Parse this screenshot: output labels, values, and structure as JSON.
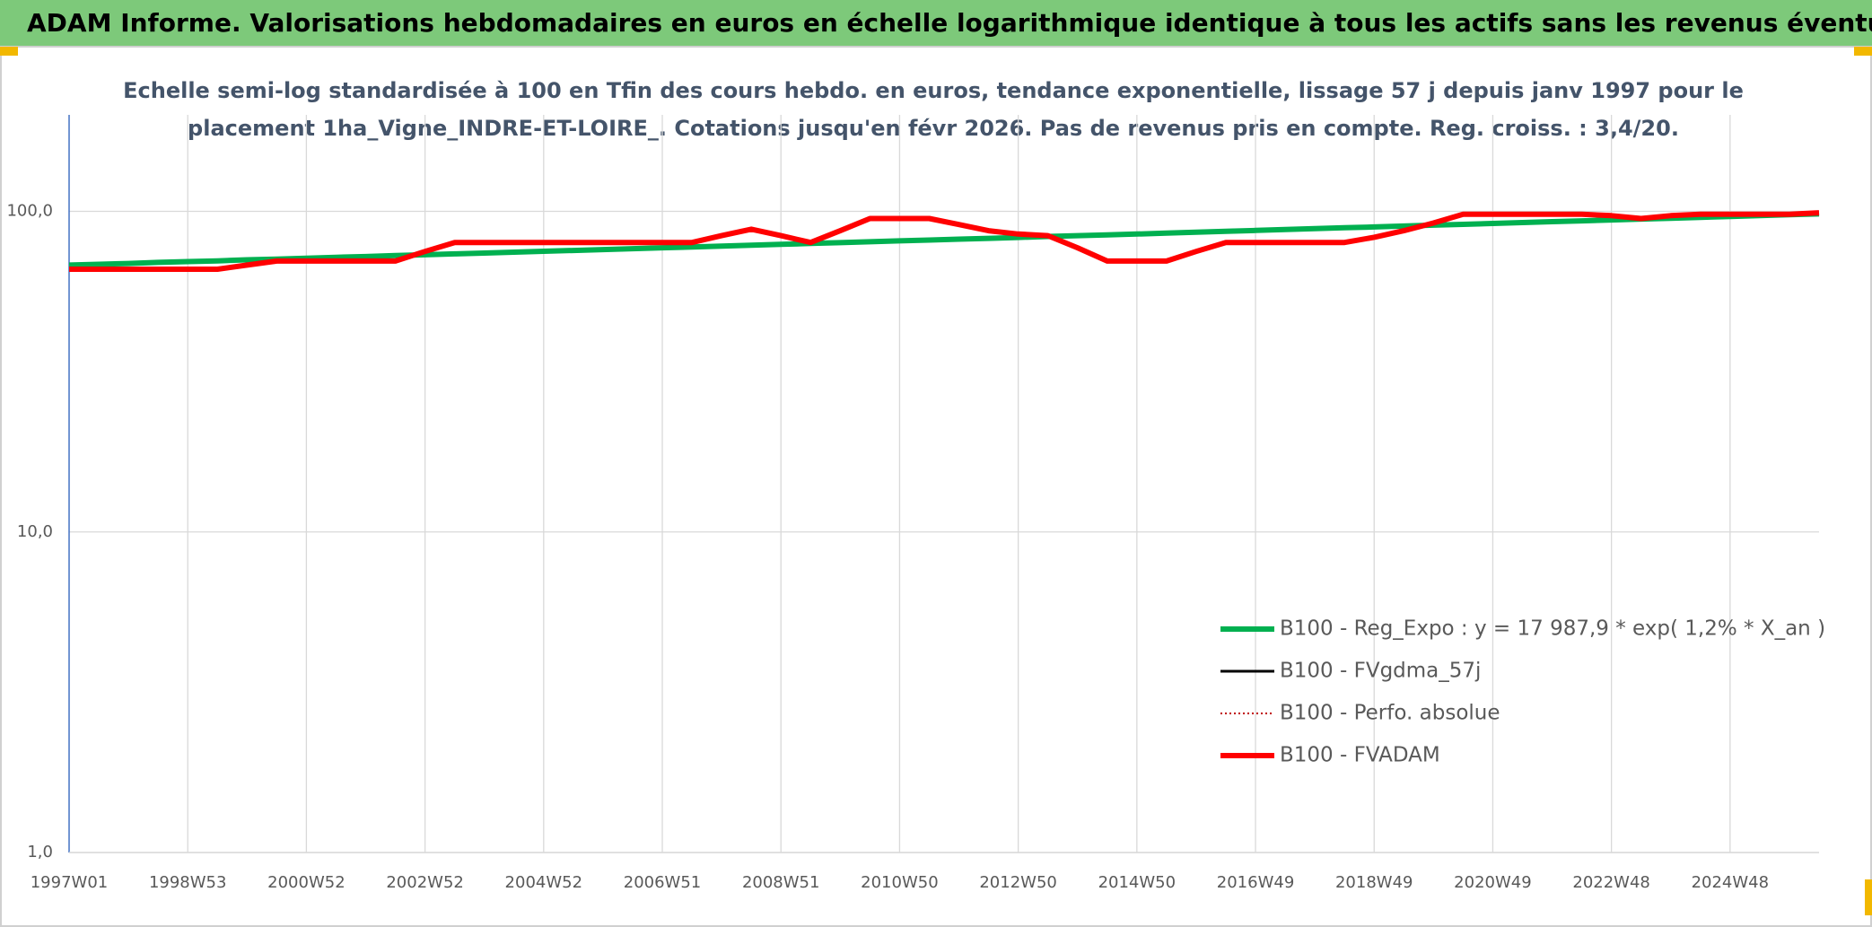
{
  "header": {
    "title": "ADAM Informe. Valorisations hebdomadaires en euros en échelle logarithmique identique à tous les actifs sans les revenus éventuels"
  },
  "chart_data": {
    "type": "line",
    "title_lines": [
      "Echelle semi-log standardisée à 100 en Tfin des cours hebdo. en euros, tendance exponentielle, lissage 57 j depuis janv 1997 pour le",
      "placement 1ha_Vigne_INDRE-ET-LOIRE_. Cotations jusqu'en févr 2026. Pas de revenus pris en compte. Reg. croiss. : 3,4/20."
    ],
    "categories": [
      "1997W01",
      null,
      null,
      null,
      "1998W53",
      null,
      null,
      null,
      "2000W52",
      null,
      null,
      null,
      "2002W52",
      null,
      null,
      null,
      "2004W52",
      null,
      null,
      null,
      "2006W51",
      null,
      null,
      null,
      "2008W51",
      null,
      null,
      null,
      "2010W50",
      null,
      null,
      null,
      "2012W50",
      null,
      null,
      null,
      "2014W50",
      null,
      null,
      null,
      "2016W49",
      null,
      null,
      null,
      "2018W49",
      null,
      null,
      null,
      "2020W49",
      null,
      null,
      null,
      "2022W48",
      null,
      null,
      null,
      "2024W48",
      null,
      null,
      null
    ],
    "log_scale": true,
    "grid": true,
    "legend": "lower right",
    "ylim": [
      1,
      200
    ],
    "yticks": [
      {
        "value": 1,
        "label": "1,0"
      },
      {
        "value": 10,
        "label": "10,0"
      },
      {
        "value": 100,
        "label": "100,0"
      }
    ],
    "series": [
      {
        "name": "B100 - Reg_Expo : y = 17 987,9 * exp( 1,2% *  X_an )",
        "color": "#00b050",
        "line_style": "solid",
        "values": [
          68.0,
          68.4,
          68.8,
          69.3,
          69.7,
          70.1,
          70.6,
          71.0,
          71.4,
          71.9,
          72.3,
          72.8,
          73.2,
          73.7,
          74.1,
          74.6,
          75.1,
          75.5,
          76.0,
          76.5,
          77.0,
          77.4,
          77.9,
          78.4,
          78.9,
          79.4,
          79.9,
          80.4,
          80.9,
          81.4,
          81.9,
          82.4,
          82.9,
          83.5,
          84.0,
          84.5,
          85.0,
          85.6,
          86.1,
          86.7,
          87.2,
          87.8,
          88.3,
          88.9,
          89.4,
          90.0,
          90.6,
          91.1,
          91.7,
          92.3,
          92.9,
          93.4,
          94.0,
          94.6,
          95.2,
          95.8,
          96.4,
          97.0,
          97.6,
          98.2
        ]
      },
      {
        "name": "B100 - FVgdma_57j",
        "color": "#000000",
        "line_style": "solid",
        "values": [
          66,
          66,
          66,
          66,
          66,
          66,
          68,
          70,
          70,
          70,
          70,
          70,
          75,
          80,
          80,
          80,
          80,
          80,
          80,
          80,
          80,
          80,
          84,
          88,
          84,
          80,
          87,
          95,
          95,
          95,
          91,
          87,
          85,
          84,
          77,
          70,
          70,
          70,
          75,
          80,
          80,
          80,
          80,
          80,
          83,
          87,
          92,
          98,
          98,
          98,
          98,
          98,
          97,
          95,
          97,
          98,
          98,
          98,
          98,
          99
        ]
      },
      {
        "name": "B100 - Perfo. absolue",
        "color": "#c00000",
        "line_style": "dotted",
        "values": [
          66,
          66,
          66,
          66,
          66,
          66,
          68,
          70,
          70,
          70,
          70,
          70,
          75,
          80,
          80,
          80,
          80,
          80,
          80,
          80,
          80,
          80,
          84,
          88,
          84,
          80,
          87,
          95,
          95,
          95,
          91,
          87,
          85,
          84,
          77,
          70,
          70,
          70,
          75,
          80,
          80,
          80,
          80,
          80,
          83,
          87,
          92,
          98,
          98,
          98,
          98,
          98,
          97,
          95,
          97,
          98,
          98,
          98,
          98,
          99
        ]
      },
      {
        "name": "B100 - FVADAM",
        "color": "#ff0000",
        "line_style": "solid",
        "values": [
          66,
          66,
          66,
          66,
          66,
          66,
          68,
          70,
          70,
          70,
          70,
          70,
          75,
          80,
          80,
          80,
          80,
          80,
          80,
          80,
          80,
          80,
          84,
          88,
          84,
          80,
          87,
          95,
          95,
          95,
          91,
          87,
          85,
          84,
          77,
          70,
          70,
          70,
          75,
          80,
          80,
          80,
          80,
          80,
          83,
          87,
          92,
          98,
          98,
          98,
          98,
          98,
          97,
          95,
          97,
          98,
          98,
          98,
          98,
          99
        ]
      }
    ]
  }
}
